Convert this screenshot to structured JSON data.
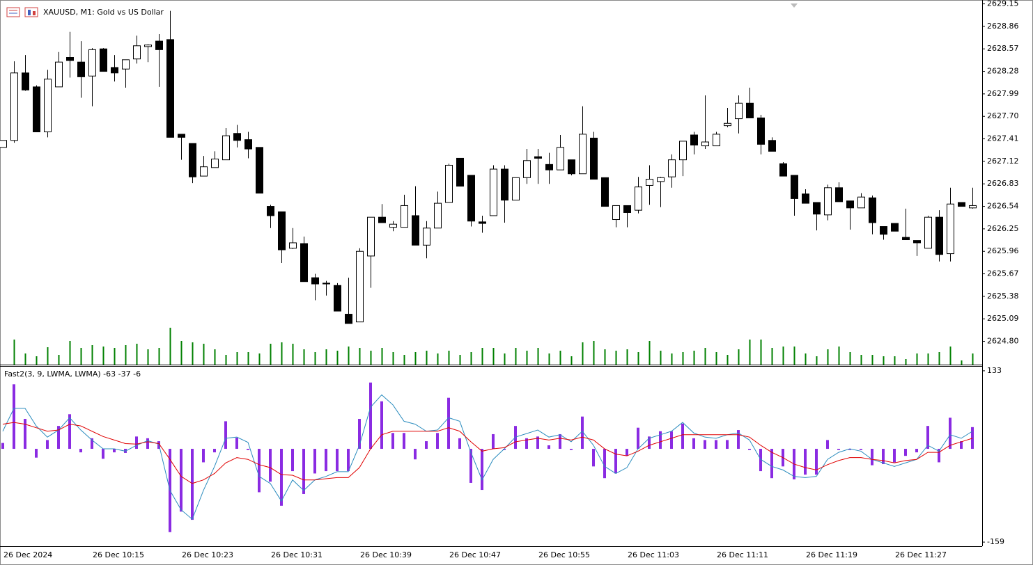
{
  "chart_data": [
    {
      "type": "candlestick",
      "title": "XAUUSD, M1:  Gold vs US Dollar",
      "categories": [
        "26 Dec 2024",
        null,
        null,
        null,
        null,
        null,
        null,
        null,
        "26 Dec 10:15",
        null,
        null,
        null,
        null,
        null,
        null,
        null,
        "26 Dec 10:23",
        null,
        null,
        null,
        null,
        null,
        null,
        null,
        "26 Dec 10:31",
        null,
        null,
        null,
        null,
        null,
        null,
        null,
        "26 Dec 10:39",
        null,
        null,
        null,
        null,
        null,
        null,
        null,
        "26 Dec 10:47",
        null,
        null,
        null,
        null,
        null,
        null,
        null,
        "26 Dec 10:55",
        null,
        null,
        null,
        null,
        null,
        null,
        null,
        "26 Dec 11:03",
        null,
        null,
        null,
        null,
        null,
        null,
        null,
        "26 Dec 11:11",
        null,
        null,
        null,
        null,
        null,
        null,
        null,
        "26 Dec 11:19",
        null,
        null,
        null,
        null,
        null,
        null,
        null,
        "26 Dec 11:27",
        null,
        null,
        null,
        null,
        null,
        null,
        null
      ],
      "open": [
        2627.3,
        2627.39,
        2628.26,
        2628.08,
        2627.5,
        2628.08,
        2628.46,
        2628.4,
        2628.22,
        2628.57,
        2628.33,
        2628.31,
        2628.44,
        2628.6,
        2628.67,
        2628.69,
        2627.47,
        2627.35,
        2626.93,
        2627.04,
        2627.14,
        2627.48,
        2627.4,
        2627.3,
        2626.54,
        2626.47,
        2626.0,
        2626.06,
        2625.62,
        2625.55,
        2625.52,
        2625.15,
        2625.05,
        2625.9,
        2626.4,
        2626.27,
        2626.27,
        2626.42,
        2626.04,
        2626.26,
        2626.59,
        2627.16,
        2626.94,
        2626.34,
        2626.42,
        2627.02,
        2626.62,
        2626.91,
        2627.18,
        2627.08,
        2627.01,
        2627.14,
        2626.96,
        2627.42,
        2626.91,
        2626.37,
        2626.55,
        2626.49,
        2626.81,
        2626.86,
        2626.92,
        2627.14,
        2627.46,
        2627.32,
        2627.32,
        2627.58,
        2627.67,
        2627.87,
        2627.68,
        2627.39,
        2627.09,
        2626.94,
        2626.7,
        2626.59,
        2626.43,
        2626.78,
        2626.61,
        2626.52,
        2626.65,
        2626.28,
        2626.32,
        2626.14,
        2626.1,
        2626.0,
        2626.4,
        2625.93,
        2626.59,
        2626.52
      ],
      "high": [
        2627.39,
        2628.41,
        2628.49,
        2628.1,
        2628.3,
        2628.53,
        2628.79,
        2628.67,
        2628.58,
        2628.58,
        2628.49,
        2628.43,
        2628.74,
        2628.63,
        2628.76,
        2629.06,
        2627.47,
        2627.35,
        2627.19,
        2627.25,
        2627.55,
        2627.59,
        2627.5,
        2627.3,
        2626.56,
        2626.47,
        2626.26,
        2626.15,
        2625.67,
        2625.58,
        2625.55,
        2625.62,
        2626.0,
        2626.4,
        2626.57,
        2626.35,
        2626.69,
        2626.8,
        2626.35,
        2626.73,
        2627.09,
        2627.16,
        2626.94,
        2626.42,
        2627.07,
        2627.07,
        2626.91,
        2627.28,
        2627.28,
        2627.23,
        2627.46,
        2627.14,
        2627.83,
        2627.5,
        2626.91,
        2626.55,
        2626.55,
        2626.92,
        2627.07,
        2626.92,
        2627.21,
        2627.38,
        2627.5,
        2627.97,
        2627.5,
        2627.81,
        2627.97,
        2628.07,
        2627.72,
        2627.43,
        2627.11,
        2626.94,
        2626.76,
        2626.59,
        2626.82,
        2626.85,
        2626.61,
        2626.71,
        2626.68,
        2626.28,
        2626.32,
        2626.51,
        2626.1,
        2626.42,
        2626.49,
        2626.78,
        2626.59,
        2626.78
      ],
      "low": [
        2627.3,
        2627.36,
        2628.03,
        2627.5,
        2627.43,
        2628.08,
        2628.2,
        2627.94,
        2627.83,
        2628.28,
        2628.15,
        2628.07,
        2628.38,
        2628.4,
        2628.08,
        2627.43,
        2627.14,
        2626.84,
        2626.93,
        2627.04,
        2627.14,
        2627.3,
        2627.16,
        2626.71,
        2626.26,
        2625.81,
        2625.99,
        2625.57,
        2625.33,
        2625.39,
        2625.19,
        2625.03,
        2625.05,
        2625.49,
        2626.33,
        2626.22,
        2626.27,
        2626.04,
        2625.87,
        2626.26,
        2626.59,
        2626.8,
        2626.28,
        2626.2,
        2626.42,
        2626.33,
        2626.62,
        2626.83,
        2626.83,
        2626.83,
        2627.01,
        2626.94,
        2626.96,
        2626.89,
        2626.54,
        2626.27,
        2626.27,
        2626.45,
        2626.56,
        2626.53,
        2626.78,
        2626.93,
        2627.21,
        2627.28,
        2627.32,
        2627.56,
        2627.48,
        2627.68,
        2627.21,
        2627.25,
        2626.93,
        2626.42,
        2626.58,
        2626.23,
        2626.36,
        2626.6,
        2626.24,
        2626.52,
        2626.18,
        2626.11,
        2626.22,
        2626.11,
        2625.9,
        2626.0,
        2625.83,
        2625.83,
        2626.54,
        2626.51
      ],
      "close": [
        2627.39,
        2628.26,
        2628.04,
        2627.5,
        2628.18,
        2628.4,
        2628.42,
        2628.21,
        2628.56,
        2628.28,
        2628.26,
        2628.43,
        2628.61,
        2628.62,
        2628.56,
        2627.43,
        2627.43,
        2626.92,
        2627.05,
        2627.15,
        2627.45,
        2627.39,
        2627.28,
        2626.71,
        2626.42,
        2625.98,
        2626.07,
        2625.57,
        2625.54,
        2625.54,
        2625.19,
        2625.03,
        2625.96,
        2626.4,
        2626.33,
        2626.31,
        2626.55,
        2626.04,
        2626.26,
        2626.58,
        2627.07,
        2626.8,
        2626.35,
        2626.32,
        2627.02,
        2626.62,
        2626.91,
        2627.13,
        2627.16,
        2627.01,
        2627.3,
        2626.96,
        2627.47,
        2626.89,
        2626.54,
        2626.55,
        2626.46,
        2626.79,
        2626.89,
        2626.91,
        2627.14,
        2627.38,
        2627.33,
        2627.37,
        2627.47,
        2627.61,
        2627.87,
        2627.68,
        2627.34,
        2627.25,
        2626.93,
        2626.64,
        2626.58,
        2626.44,
        2626.78,
        2626.6,
        2626.52,
        2626.66,
        2626.33,
        2626.18,
        2626.22,
        2626.11,
        2626.07,
        2626.4,
        2625.92,
        2626.57,
        2626.54,
        2626.55
      ],
      "volume": [
        0,
        36,
        16,
        12,
        25,
        14,
        34,
        24,
        28,
        26,
        24,
        28,
        30,
        22,
        24,
        53,
        34,
        32,
        30,
        22,
        14,
        18,
        18,
        16,
        30,
        32,
        30,
        22,
        18,
        22,
        20,
        26,
        24,
        20,
        24,
        18,
        14,
        18,
        20,
        16,
        20,
        14,
        18,
        24,
        24,
        16,
        24,
        20,
        24,
        16,
        20,
        12,
        32,
        34,
        22,
        20,
        22,
        18,
        34,
        20,
        16,
        18,
        20,
        24,
        18,
        14,
        22,
        36,
        36,
        24,
        26,
        26,
        16,
        12,
        22,
        26,
        18,
        14,
        14,
        12,
        12,
        8,
        16,
        16,
        18,
        26,
        6,
        16
      ],
      "up_color": "#ffffff",
      "down_color": "#000000",
      "volume_color": "#008000",
      "ylim": [
        2624.5,
        2629.2
      ],
      "yticks": [
        2629.15,
        2628.86,
        2628.57,
        2628.28,
        2627.99,
        {
          "value": 2627.7,
          "label": "2627.70"
        },
        2627.41,
        2627.12,
        2626.83,
        2626.54,
        2626.25,
        2625.96,
        2625.67,
        2625.38,
        2625.09,
        {
          "value": 2624.8,
          "label": "2624.80"
        }
      ]
    },
    {
      "type": "combo",
      "title": "Fast2(3, 9, LWMA, LWMA) -63 -37 -6",
      "series": [
        {
          "type": "bar",
          "color": "#8a2be2",
          "values": [
            10,
            110,
            51,
            -15,
            15,
            39,
            59,
            -6,
            18,
            -17,
            -6,
            -7,
            21,
            18,
            13,
            -142,
            -107,
            -121,
            -23,
            -6,
            47,
            19,
            -2,
            -74,
            -56,
            -97,
            -38,
            -77,
            -42,
            -38,
            -38,
            -38,
            51,
            113,
            81,
            27,
            27,
            -18,
            13,
            27,
            87,
            18,
            -58,
            -70,
            25,
            -2,
            39,
            18,
            21,
            6,
            25,
            -2,
            55,
            -30,
            -50,
            -42,
            -12,
            36,
            21,
            30,
            30,
            43,
            18,
            15,
            15,
            15,
            32,
            -2,
            -38,
            -50,
            -30,
            -52,
            -44,
            -44,
            15,
            -2,
            -2,
            -2,
            -28,
            -26,
            -23,
            -12,
            -6,
            39,
            -23,
            53,
            13,
            37
          ]
        },
        {
          "type": "line",
          "color": "#2b8cbe",
          "values": [
            30,
            69,
            69,
            39,
            20,
            32,
            53,
            32,
            15,
            0,
            0,
            -4,
            6,
            14,
            8,
            -71,
            -104,
            -120,
            -71,
            -30,
            18,
            20,
            11,
            -47,
            -59,
            -89,
            -53,
            -71,
            -53,
            -47,
            -39,
            -39,
            6,
            71,
            92,
            75,
            47,
            42,
            30,
            32,
            53,
            47,
            -6,
            -53,
            -18,
            0,
            20,
            26,
            32,
            20,
            24,
            12,
            30,
            6,
            -30,
            -42,
            -32,
            0,
            18,
            24,
            30,
            45,
            27,
            20,
            18,
            24,
            27,
            15,
            -18,
            -30,
            -36,
            -47,
            -49,
            -47,
            -18,
            -6,
            0,
            -4,
            -18,
            -24,
            -30,
            -24,
            -18,
            6,
            -4,
            24,
            18,
            30
          ]
        },
        {
          "type": "line",
          "color": "#e00000",
          "values": [
            42,
            45,
            42,
            36,
            30,
            32,
            42,
            39,
            30,
            21,
            15,
            9,
            8,
            12,
            9,
            -18,
            -47,
            -59,
            -53,
            -42,
            -24,
            -15,
            -18,
            -27,
            -32,
            -44,
            -45,
            -53,
            -53,
            -51,
            -49,
            -49,
            -32,
            0,
            24,
            30,
            30,
            30,
            30,
            30,
            36,
            30,
            12,
            -4,
            0,
            2,
            12,
            15,
            18,
            15,
            18,
            15,
            20,
            15,
            0,
            -9,
            -12,
            -4,
            6,
            12,
            18,
            24,
            24,
            24,
            24,
            24,
            24,
            20,
            6,
            -6,
            -15,
            -26,
            -32,
            -36,
            -27,
            -20,
            -15,
            -15,
            -18,
            -20,
            -24,
            -20,
            -18,
            -6,
            -6,
            6,
            12,
            18
          ]
        }
      ],
      "ylim": [
        -166,
        140
      ],
      "yticks": [
        133,
        -159
      ]
    }
  ]
}
